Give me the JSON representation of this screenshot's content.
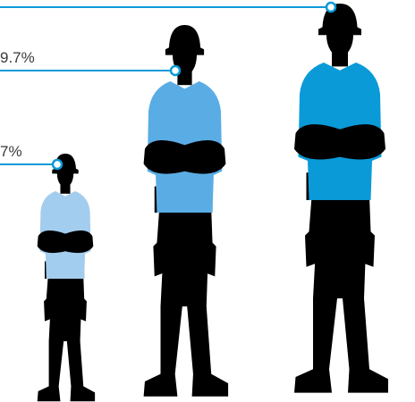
{
  "chart_data": {
    "type": "pictograph",
    "title": "",
    "categories": [
      "",
      "",
      ""
    ],
    "series": [
      {
        "values": [
          null,
          9.7,
          null
        ]
      }
    ],
    "point_labels": [
      "7%",
      "9.7%",
      ""
    ],
    "colors": [
      "#a3cdef",
      "#5aade4",
      "#0a9ad8"
    ],
    "accent": "#0a9ad8",
    "silhouette": "#000000",
    "icon": "construction-worker-icon"
  }
}
